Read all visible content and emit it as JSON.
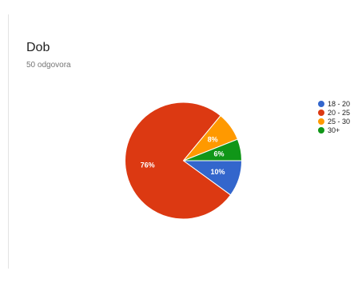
{
  "card": {
    "title": "Dob",
    "subtitle": "50 odgovora"
  },
  "chart_data": {
    "type": "pie",
    "title": "Dob",
    "subtitle": "50 odgovora",
    "categories": [
      "18 - 20",
      "20 - 25",
      "25 - 30",
      "30+"
    ],
    "values": [
      10,
      76,
      8,
      6
    ],
    "value_labels": [
      "10%",
      "76%",
      "8%",
      "6%"
    ],
    "colors": [
      "#3366cc",
      "#dc3912",
      "#ff9900",
      "#109618"
    ],
    "legend_position": "right"
  }
}
